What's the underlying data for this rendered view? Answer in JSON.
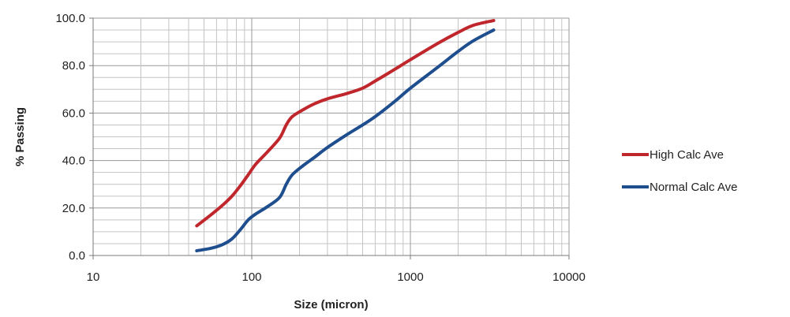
{
  "chart_data": {
    "type": "line",
    "title": "",
    "xlabel": "Size (micron)",
    "ylabel": "% Passing",
    "x_scale": "log",
    "xlim": [
      10,
      10000
    ],
    "ylim": [
      0,
      100
    ],
    "x_ticks": [
      10,
      100,
      1000,
      10000
    ],
    "x_tick_labels": [
      "10",
      "100",
      "1000",
      "10000"
    ],
    "y_ticks": [
      0,
      20,
      40,
      60,
      80,
      100
    ],
    "y_tick_labels": [
      "0.0",
      "20.0",
      "40.0",
      "60.0",
      "80.0",
      "100.0"
    ],
    "grid": true,
    "legend_position": "right",
    "series": [
      {
        "name": "High Calc Ave",
        "color": "#c0272d",
        "x": [
          45,
          55,
          65,
          75,
          85,
          95,
          106,
          125,
          150,
          165,
          180,
          212,
          250,
          300,
          400,
          500,
          600,
          800,
          1000,
          1500,
          2000,
          2500,
          3350
        ],
        "y": [
          12.5,
          17,
          21,
          25,
          29.5,
          34,
          38.5,
          43.5,
          49.5,
          55,
          58.5,
          61.5,
          64,
          66,
          68.3,
          70.5,
          73.5,
          78.5,
          82.5,
          89.5,
          94,
          97,
          99
        ]
      },
      {
        "name": "Normal Calc Ave",
        "color": "#1f4e8f",
        "x": [
          45,
          55,
          65,
          75,
          85,
          95,
          106,
          125,
          150,
          165,
          180,
          212,
          250,
          300,
          400,
          500,
          600,
          800,
          1000,
          1500,
          2000,
          2500,
          3350
        ],
        "y": [
          2,
          3,
          4.5,
          7,
          11,
          15,
          17.5,
          20.5,
          24.5,
          30,
          34,
          38,
          41.5,
          45.5,
          51,
          55,
          58.5,
          65,
          70.5,
          79.5,
          86,
          90.5,
          95
        ]
      }
    ]
  }
}
